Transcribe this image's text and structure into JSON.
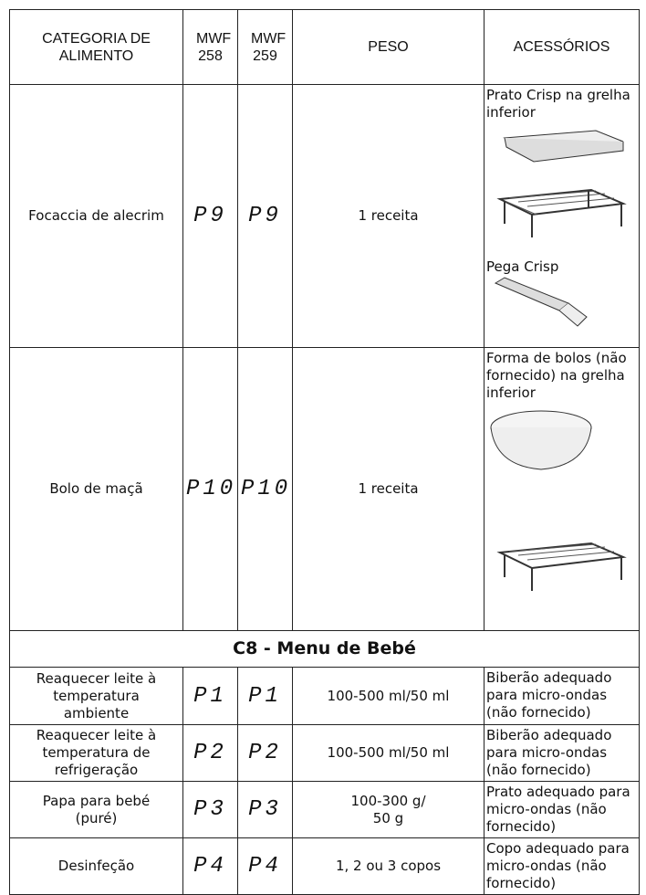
{
  "table": {
    "header": [
      "CATEGORIA DE ALIMENTO",
      "MWF 258",
      "MWF 259",
      "PESO",
      "ACESSÓRIOS"
    ],
    "rows": [
      {
        "food": "Focaccia de alecrim",
        "mwf258": "P9",
        "mwf259": "P9",
        "weight": "1 receita",
        "accessories": [
          "Prato Crisp na grelha inferior",
          "Pega Crisp"
        ]
      },
      {
        "food": "Bolo de maçã",
        "mwf258": "P10",
        "mwf259": "P10",
        "weight": "1 receita",
        "accessories": [
          "Forma de bolos (não fornecido) na grelha inferior"
        ]
      }
    ],
    "section": "C8 - Menu de Bebé",
    "section_rows": [
      {
        "food": "Reaquecer leite à temperatura ambiente",
        "mwf258": "P1",
        "mwf259": "P1",
        "weight": "100-500 ml/50 ml",
        "accessories": "Biberão adequado para micro-ondas (não fornecido)"
      },
      {
        "food": "Reaquecer leite à temperatura de refrigeração",
        "mwf258": "P2",
        "mwf259": "P2",
        "weight": "100-500 ml/50 ml",
        "accessories": "Biberão adequado para micro-ondas (não fornecido)"
      },
      {
        "food": "Papa para bebé (puré)",
        "mwf258": "P3",
        "mwf259": "P3",
        "weight": "100-300 g/ 50 g",
        "accessories": "Prato adequado para micro-ondas (não fornecido)"
      },
      {
        "food": "Desinfeção",
        "mwf258": "P4",
        "mwf259": "P4",
        "weight": "1, 2 ou 3 copos",
        "accessories": "Copo adequado para micro-ondas (não fornecido)"
      }
    ]
  }
}
